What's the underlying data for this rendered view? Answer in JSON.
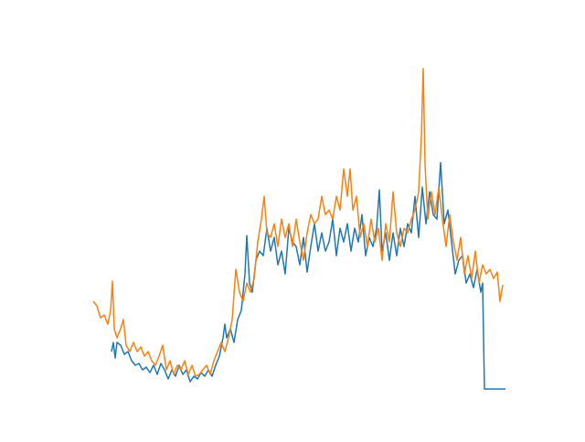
{
  "chart_data": {
    "type": "line",
    "xlim": [
      0,
      451
    ],
    "ylim": [
      0,
      352
    ],
    "series": [
      {
        "color": "#1f77b4",
        "x": [
          20,
          22,
          24,
          26,
          30,
          34,
          38,
          42,
          46,
          50,
          54,
          58,
          62,
          66,
          70,
          74,
          78,
          82,
          86,
          90,
          94,
          98,
          102,
          106,
          110,
          114,
          118,
          122,
          126,
          130,
          134,
          138,
          142,
          144,
          146,
          150,
          154,
          158,
          162,
          166,
          168,
          171,
          174,
          178,
          182,
          186,
          190,
          194,
          198,
          202,
          206,
          210,
          214,
          218,
          222,
          226,
          230,
          234,
          238,
          242,
          246,
          250,
          254,
          258,
          262,
          266,
          270,
          274,
          278,
          282,
          286,
          290,
          294,
          298,
          302,
          306,
          310,
          313,
          316,
          320,
          324,
          328,
          332,
          336,
          340,
          344,
          348,
          352,
          356,
          360,
          364,
          368,
          372,
          376,
          380,
          384,
          388,
          392,
          396,
          400,
          404,
          408,
          412,
          416,
          420,
          424,
          426,
          428,
          451
        ],
        "values": [
          42,
          52,
          35,
          52,
          49,
          39,
          42,
          32,
          27,
          29,
          22,
          25,
          19,
          27,
          17,
          29,
          22,
          12,
          22,
          15,
          27,
          17,
          22,
          9,
          15,
          12,
          19,
          15,
          22,
          15,
          27,
          37,
          57,
          72,
          57,
          67,
          52,
          77,
          87,
          127,
          169,
          117,
          107,
          142,
          152,
          147,
          177,
          152,
          167,
          137,
          152,
          127,
          177,
          162,
          157,
          137,
          167,
          129,
          157,
          182,
          152,
          172,
          152,
          162,
          187,
          147,
          177,
          162,
          182,
          152,
          177,
          162,
          192,
          147,
          167,
          157,
          177,
          219,
          152,
          172,
          142,
          172,
          147,
          177,
          157,
          182,
          172,
          212,
          167,
          222,
          182,
          217,
          192,
          187,
          249,
          182,
          197,
          162,
          127,
          142,
          147,
          117,
          127,
          112,
          132,
          107,
          117,
          1,
          1
        ]
      },
      {
        "color": "#ff7f0e",
        "x": [
          0,
          4,
          8,
          12,
          16,
          19,
          21,
          23,
          26,
          30,
          33,
          36,
          40,
          44,
          48,
          52,
          56,
          60,
          64,
          68,
          72,
          76,
          80,
          84,
          88,
          92,
          96,
          100,
          104,
          108,
          112,
          116,
          120,
          124,
          128,
          132,
          136,
          140,
          144,
          148,
          152,
          156,
          160,
          164,
          168,
          172,
          176,
          180,
          184,
          187,
          190,
          194,
          198,
          202,
          206,
          210,
          214,
          218,
          222,
          226,
          230,
          234,
          238,
          242,
          246,
          250,
          254,
          258,
          262,
          266,
          270,
          274,
          278,
          281,
          284,
          288,
          292,
          296,
          300,
          304,
          308,
          312,
          316,
          320,
          324,
          328,
          332,
          336,
          340,
          344,
          348,
          352,
          356,
          359,
          361,
          363,
          366,
          370,
          374,
          378,
          382,
          386,
          390,
          394,
          398,
          402,
          406,
          410,
          414,
          418,
          422,
          426,
          430,
          434,
          438,
          442,
          445,
          448
        ],
        "values": [
          97,
          92,
          79,
          82,
          72,
          87,
          119,
          67,
          57,
          67,
          77,
          49,
          42,
          52,
          42,
          47,
          37,
          42,
          32,
          27,
          37,
          49,
          22,
          32,
          17,
          27,
          22,
          32,
          17,
          27,
          15,
          17,
          22,
          27,
          17,
          32,
          42,
          52,
          42,
          57,
          77,
          132,
          107,
          97,
          117,
          107,
          122,
          162,
          187,
          212,
          172,
          167,
          182,
          157,
          187,
          167,
          182,
          157,
          187,
          162,
          142,
          172,
          192,
          182,
          187,
          212,
          192,
          197,
          187,
          212,
          197,
          242,
          212,
          242,
          197,
          212,
          167,
          182,
          157,
          187,
          162,
          177,
          142,
          182,
          162,
          217,
          172,
          157,
          177,
          172,
          187,
          197,
          217,
          277,
          352,
          247,
          187,
          217,
          192,
          222,
          187,
          157,
          192,
          162,
          142,
          167,
          127,
          147,
          122,
          152,
          117,
          137,
          127,
          132,
          122,
          129,
          97,
          115
        ]
      }
    ]
  }
}
